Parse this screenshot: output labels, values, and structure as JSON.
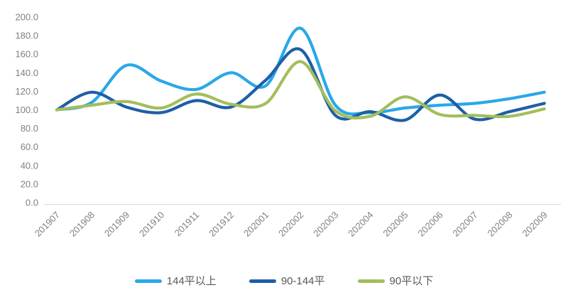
{
  "chart_data": {
    "type": "line",
    "title": "",
    "xlabel": "",
    "ylabel": "",
    "categories": [
      "201907",
      "201908",
      "201909",
      "201910",
      "201911",
      "201912",
      "202001",
      "202002",
      "202003",
      "202004",
      "202005",
      "202006",
      "202007",
      "202008",
      "202009"
    ],
    "series": [
      {
        "name": "144平以上",
        "color": "#29A8E8",
        "values": [
          100,
          108,
          148,
          131,
          122,
          140,
          126,
          188,
          105,
          97,
          102,
          105,
          107,
          112,
          119
        ]
      },
      {
        "name": "90-144平",
        "color": "#1E5FA6",
        "values": [
          100,
          119,
          103,
          97,
          110,
          103,
          132,
          165,
          94,
          98,
          89,
          116,
          90,
          98,
          107
        ]
      },
      {
        "name": "90平以下",
        "color": "#A2BE5C",
        "values": [
          100,
          105,
          109,
          102,
          117,
          106,
          107,
          152,
          99,
          93,
          114,
          95,
          94,
          93,
          101
        ]
      }
    ],
    "ylim": [
      0,
      200
    ],
    "ytick_step": 20,
    "ytick_labels": [
      "0.0",
      "20.0",
      "40.0",
      "60.0",
      "80.0",
      "100.0",
      "120.0",
      "140.0",
      "160.0",
      "180.0",
      "200.0"
    ],
    "grid": false,
    "legend_position": "bottom",
    "x_label_rotation_deg": -45,
    "colors": {
      "axis_line": "#d9d9d9",
      "tick_label": "#7f7f7f",
      "legend_text": "#595959",
      "background": "#ffffff"
    }
  }
}
